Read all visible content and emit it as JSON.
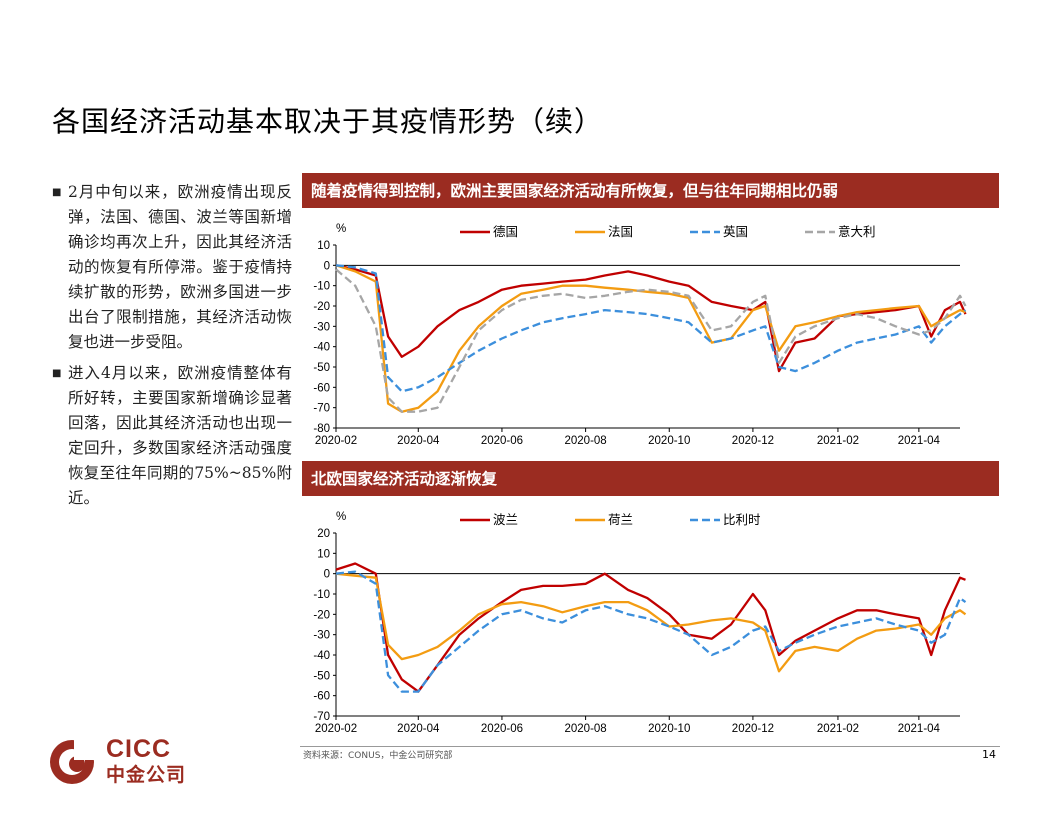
{
  "title": "各国经济活动基本取决于其疫情形势（续）",
  "bullets": [
    "2月中旬以来，欧洲疫情出现反弹，法国、德国、波兰等国新增确诊均再次上升，因此其经济活动的恢复有所停滞。鉴于疫情持续扩散的形势，欧洲多国进一步出台了限制措施，其经济活动恢复也进一步受阻。",
    "进入4月以来，欧洲疫情整体有所好转，主要国家新增确诊显著回落，因此其经济活动也出现一定回升，多数国家经济活动强度恢复至往年同期的75%~85%附近。"
  ],
  "footer": {
    "source": "资料来源：CONUS，中金公司研究部",
    "page": "14"
  },
  "logo": {
    "en": "CICC",
    "cn": "中金公司"
  },
  "chart_data": [
    {
      "type": "line",
      "title": "随着疫情得到控制，欧洲主要国家经济活动有所恢复，但与往年同期相比仍弱",
      "ylabel": "%",
      "ylim": [
        -80,
        10
      ],
      "yticks": [
        10,
        0,
        -10,
        -20,
        -30,
        -40,
        -50,
        -60,
        -70,
        -80
      ],
      "xlim": [
        "2020-02",
        "2021-05"
      ],
      "xticks": [
        "2020-02",
        "2020-04",
        "2020-06",
        "2020-08",
        "2020-10",
        "2020-12",
        "2021-02",
        "2021-04"
      ],
      "legend_position": "top",
      "series": [
        {
          "name": "德国",
          "color": "#c00000",
          "dash": "solid",
          "x": [
            "2020-02-01",
            "2020-02-15",
            "2020-03-01",
            "2020-03-10",
            "2020-03-20",
            "2020-04-01",
            "2020-04-15",
            "2020-05-01",
            "2020-05-15",
            "2020-06-01",
            "2020-06-15",
            "2020-07-01",
            "2020-07-15",
            "2020-08-01",
            "2020-08-15",
            "2020-09-01",
            "2020-09-15",
            "2020-10-01",
            "2020-10-15",
            "2020-11-01",
            "2020-11-15",
            "2020-12-01",
            "2020-12-10",
            "2020-12-20",
            "2021-01-01",
            "2021-01-15",
            "2021-02-01",
            "2021-02-15",
            "2021-03-01",
            "2021-03-15",
            "2021-04-01",
            "2021-04-10",
            "2021-04-20",
            "2021-05-01",
            "2021-05-05"
          ],
          "y": [
            0,
            -2,
            -5,
            -35,
            -45,
            -40,
            -30,
            -22,
            -18,
            -12,
            -10,
            -9,
            -8,
            -7,
            -5,
            -3,
            -5,
            -8,
            -10,
            -18,
            -20,
            -22,
            -18,
            -52,
            -38,
            -36,
            -25,
            -24,
            -23,
            -22,
            -20,
            -35,
            -22,
            -18,
            -24
          ]
        },
        {
          "name": "法国",
          "color": "#f39c12",
          "dash": "solid",
          "x": [
            "2020-02-01",
            "2020-02-15",
            "2020-03-01",
            "2020-03-10",
            "2020-03-20",
            "2020-04-01",
            "2020-04-15",
            "2020-05-01",
            "2020-05-15",
            "2020-06-01",
            "2020-06-15",
            "2020-07-01",
            "2020-07-15",
            "2020-08-01",
            "2020-08-15",
            "2020-09-01",
            "2020-09-15",
            "2020-10-01",
            "2020-10-15",
            "2020-11-01",
            "2020-11-15",
            "2020-12-01",
            "2020-12-10",
            "2020-12-20",
            "2021-01-01",
            "2021-01-15",
            "2021-02-01",
            "2021-02-15",
            "2021-03-01",
            "2021-03-15",
            "2021-04-01",
            "2021-04-10",
            "2021-04-20",
            "2021-05-01",
            "2021-05-05"
          ],
          "y": [
            0,
            -3,
            -8,
            -68,
            -72,
            -70,
            -62,
            -42,
            -30,
            -20,
            -14,
            -12,
            -10,
            -10,
            -11,
            -12,
            -13,
            -14,
            -16,
            -38,
            -36,
            -22,
            -20,
            -42,
            -30,
            -28,
            -25,
            -23,
            -22,
            -21,
            -20,
            -30,
            -26,
            -22,
            -23
          ]
        },
        {
          "name": "英国",
          "color": "#3c8fdc",
          "dash": "dash",
          "x": [
            "2020-02-01",
            "2020-02-15",
            "2020-03-01",
            "2020-03-10",
            "2020-03-20",
            "2020-04-01",
            "2020-04-15",
            "2020-05-01",
            "2020-05-15",
            "2020-06-01",
            "2020-06-15",
            "2020-07-01",
            "2020-07-15",
            "2020-08-01",
            "2020-08-15",
            "2020-09-01",
            "2020-09-15",
            "2020-10-01",
            "2020-10-15",
            "2020-11-01",
            "2020-11-15",
            "2020-12-01",
            "2020-12-10",
            "2020-12-20",
            "2021-01-01",
            "2021-01-15",
            "2021-02-01",
            "2021-02-15",
            "2021-03-01",
            "2021-03-15",
            "2021-04-01",
            "2021-04-10",
            "2021-04-20",
            "2021-05-01",
            "2021-05-05"
          ],
          "y": [
            0,
            -1,
            -4,
            -55,
            -62,
            -60,
            -55,
            -48,
            -42,
            -36,
            -32,
            -28,
            -26,
            -24,
            -22,
            -23,
            -24,
            -26,
            -28,
            -38,
            -36,
            -32,
            -30,
            -50,
            -52,
            -48,
            -42,
            -38,
            -36,
            -34,
            -30,
            -38,
            -30,
            -24,
            -22
          ]
        },
        {
          "name": "意大利",
          "color": "#a6a6a6",
          "dash": "dash",
          "x": [
            "2020-02-01",
            "2020-02-15",
            "2020-03-01",
            "2020-03-10",
            "2020-03-20",
            "2020-04-01",
            "2020-04-15",
            "2020-05-01",
            "2020-05-15",
            "2020-06-01",
            "2020-06-15",
            "2020-07-01",
            "2020-07-15",
            "2020-08-01",
            "2020-08-15",
            "2020-09-01",
            "2020-09-15",
            "2020-10-01",
            "2020-10-15",
            "2020-11-01",
            "2020-11-15",
            "2020-12-01",
            "2020-12-10",
            "2020-12-20",
            "2021-01-01",
            "2021-01-15",
            "2021-02-01",
            "2021-02-15",
            "2021-03-01",
            "2021-03-15",
            "2021-04-01",
            "2021-04-10",
            "2021-04-20",
            "2021-05-01",
            "2021-05-05"
          ],
          "y": [
            -2,
            -10,
            -30,
            -65,
            -72,
            -72,
            -70,
            -50,
            -32,
            -22,
            -17,
            -15,
            -14,
            -16,
            -15,
            -13,
            -12,
            -13,
            -15,
            -32,
            -30,
            -18,
            -15,
            -48,
            -35,
            -30,
            -26,
            -24,
            -26,
            -30,
            -34,
            -32,
            -26,
            -15,
            -20
          ]
        }
      ]
    },
    {
      "type": "line",
      "title": "北欧国家经济活动逐渐恢复",
      "ylabel": "%",
      "ylim": [
        -70,
        20
      ],
      "yticks": [
        20,
        10,
        0,
        -10,
        -20,
        -30,
        -40,
        -50,
        -60,
        -70
      ],
      "xlim": [
        "2020-02",
        "2021-05"
      ],
      "xticks": [
        "2020-02",
        "2020-04",
        "2020-06",
        "2020-08",
        "2020-10",
        "2020-12",
        "2021-02",
        "2021-04"
      ],
      "legend_position": "top",
      "series": [
        {
          "name": "波兰",
          "color": "#c00000",
          "dash": "solid",
          "x": [
            "2020-02-01",
            "2020-02-15",
            "2020-03-01",
            "2020-03-10",
            "2020-03-20",
            "2020-04-01",
            "2020-04-15",
            "2020-05-01",
            "2020-05-15",
            "2020-06-01",
            "2020-06-15",
            "2020-07-01",
            "2020-07-15",
            "2020-08-01",
            "2020-08-15",
            "2020-09-01",
            "2020-09-15",
            "2020-10-01",
            "2020-10-15",
            "2020-11-01",
            "2020-11-15",
            "2020-12-01",
            "2020-12-10",
            "2020-12-20",
            "2021-01-01",
            "2021-01-15",
            "2021-02-01",
            "2021-02-15",
            "2021-03-01",
            "2021-03-15",
            "2021-04-01",
            "2021-04-10",
            "2021-04-20",
            "2021-05-01",
            "2021-05-05"
          ],
          "y": [
            2,
            5,
            0,
            -40,
            -52,
            -58,
            -45,
            -30,
            -22,
            -14,
            -8,
            -6,
            -6,
            -5,
            0,
            -8,
            -12,
            -20,
            -30,
            -32,
            -25,
            -10,
            -18,
            -40,
            -33,
            -28,
            -22,
            -18,
            -18,
            -20,
            -22,
            -40,
            -18,
            -2,
            -3
          ]
        },
        {
          "name": "荷兰",
          "color": "#f39c12",
          "dash": "solid",
          "x": [
            "2020-02-01",
            "2020-02-15",
            "2020-03-01",
            "2020-03-10",
            "2020-03-20",
            "2020-04-01",
            "2020-04-15",
            "2020-05-01",
            "2020-05-15",
            "2020-06-01",
            "2020-06-15",
            "2020-07-01",
            "2020-07-15",
            "2020-08-01",
            "2020-08-15",
            "2020-09-01",
            "2020-09-15",
            "2020-10-01",
            "2020-10-15",
            "2020-11-01",
            "2020-11-15",
            "2020-12-01",
            "2020-12-10",
            "2020-12-20",
            "2021-01-01",
            "2021-01-15",
            "2021-02-01",
            "2021-02-15",
            "2021-03-01",
            "2021-03-15",
            "2021-04-01",
            "2021-04-10",
            "2021-04-20",
            "2021-05-01",
            "2021-05-05"
          ],
          "y": [
            0,
            -1,
            -2,
            -35,
            -42,
            -40,
            -36,
            -28,
            -20,
            -15,
            -14,
            -16,
            -19,
            -16,
            -14,
            -14,
            -18,
            -26,
            -25,
            -23,
            -22,
            -24,
            -28,
            -48,
            -38,
            -36,
            -38,
            -32,
            -28,
            -27,
            -25,
            -30,
            -22,
            -18,
            -20
          ]
        },
        {
          "name": "比利时",
          "color": "#3c8fdc",
          "dash": "dash",
          "x": [
            "2020-02-01",
            "2020-02-15",
            "2020-03-01",
            "2020-03-10",
            "2020-03-20",
            "2020-04-01",
            "2020-04-15",
            "2020-05-01",
            "2020-05-15",
            "2020-06-01",
            "2020-06-15",
            "2020-07-01",
            "2020-07-15",
            "2020-08-01",
            "2020-08-15",
            "2020-09-01",
            "2020-09-15",
            "2020-10-01",
            "2020-10-15",
            "2020-11-01",
            "2020-11-15",
            "2020-12-01",
            "2020-12-10",
            "2020-12-20",
            "2021-01-01",
            "2021-01-15",
            "2021-02-01",
            "2021-02-15",
            "2021-03-01",
            "2021-03-15",
            "2021-04-01",
            "2021-04-10",
            "2021-04-20",
            "2021-05-01",
            "2021-05-05"
          ],
          "y": [
            0,
            1,
            -5,
            -50,
            -58,
            -58,
            -45,
            -36,
            -28,
            -20,
            -18,
            -22,
            -24,
            -18,
            -16,
            -20,
            -22,
            -26,
            -30,
            -40,
            -36,
            -28,
            -26,
            -38,
            -34,
            -30,
            -26,
            -24,
            -22,
            -25,
            -28,
            -34,
            -30,
            -12,
            -14
          ]
        }
      ]
    }
  ]
}
